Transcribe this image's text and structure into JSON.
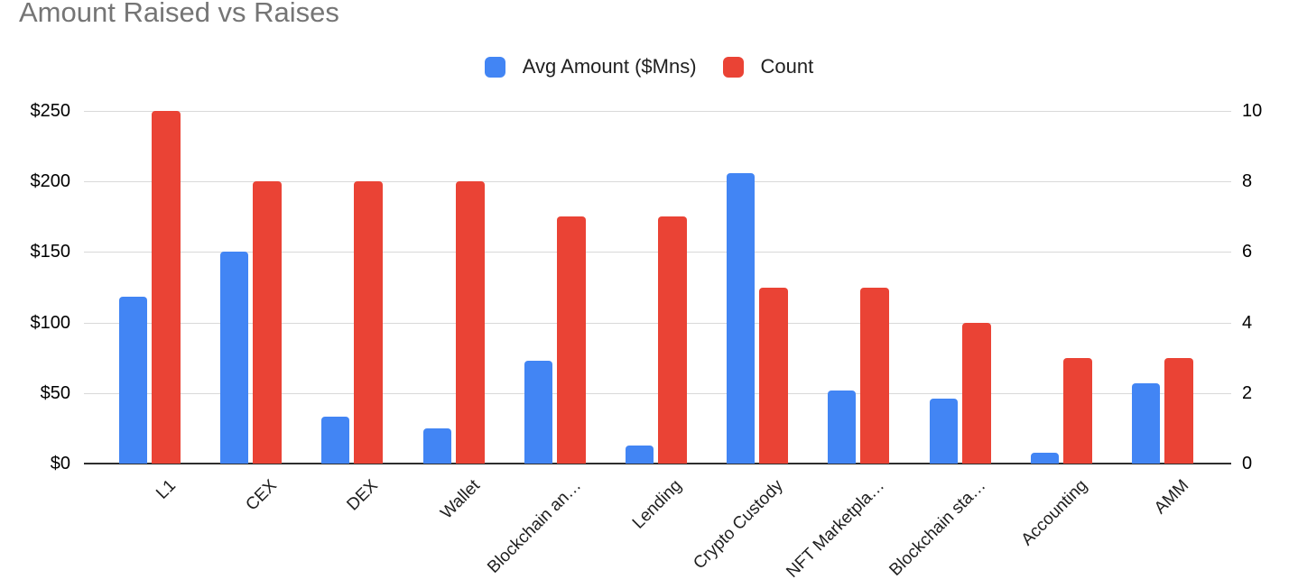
{
  "title": "Amount Raised vs Raises",
  "legend": [
    {
      "label": "Avg Amount ($Mns)",
      "color": "#4285F4"
    },
    {
      "label": "Count",
      "color": "#EA4335"
    }
  ],
  "axes": {
    "left": {
      "tick_labels": [
        "$0",
        "$50",
        "$100",
        "$150",
        "$200",
        "$250"
      ],
      "tick_values": [
        0,
        50,
        100,
        150,
        200,
        250
      ],
      "max": 250
    },
    "right": {
      "tick_labels": [
        "0",
        "2",
        "4",
        "6",
        "8",
        "10"
      ],
      "tick_values": [
        0,
        2,
        4,
        6,
        8,
        10
      ],
      "max": 10
    }
  },
  "chart_data": {
    "type": "bar",
    "title": "Amount Raised vs Raises",
    "categories": [
      "L1",
      "CEX",
      "DEX",
      "Wallet",
      "Blockchain an…",
      "Lending",
      "Crypto Custody",
      "NFT Marketpla…",
      "Blockchain sta…",
      "Accounting",
      "AMM"
    ],
    "series": [
      {
        "name": "Avg Amount ($Mns)",
        "axis": "left",
        "color": "#4285F4",
        "values": [
          118,
          150,
          33,
          25,
          73,
          13,
          206,
          52,
          46,
          8,
          57
        ]
      },
      {
        "name": "Count",
        "axis": "right",
        "color": "#EA4335",
        "values": [
          10,
          8,
          8,
          8,
          7,
          7,
          5,
          5,
          4,
          3,
          3
        ]
      }
    ],
    "left_ylim": [
      0,
      250
    ],
    "right_ylim": [
      0,
      10
    ],
    "grid": true,
    "legend_position": "top",
    "x_label_rotation": -45
  },
  "colors": {
    "series_blue": "#4285F4",
    "series_red": "#EA4335",
    "title_text": "#757575",
    "axis_text": "#000000",
    "gridline": "#d9d9d9",
    "axis_line": "#2e2e2e",
    "background": "#ffffff"
  }
}
